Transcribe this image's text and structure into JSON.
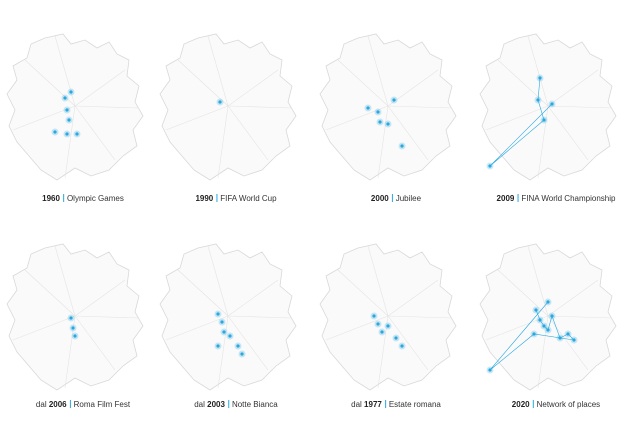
{
  "panels": [
    {
      "year": "1960",
      "name": "Olympic Games"
    },
    {
      "year": "1990",
      "name": "FIFA World Cup"
    },
    {
      "year": "2000",
      "name": "Jubilee"
    },
    {
      "year": "2009",
      "name": "FINA World Championship"
    },
    {
      "prefix": "dal",
      "year": "2006",
      "name": "Roma Film Fest"
    },
    {
      "prefix": "dal",
      "year": "2003",
      "name": "Notte Bianca"
    },
    {
      "prefix": "dal",
      "year": "1977",
      "name": "Estate romana"
    },
    {
      "year": "2020",
      "name": "Network of places"
    }
  ]
}
